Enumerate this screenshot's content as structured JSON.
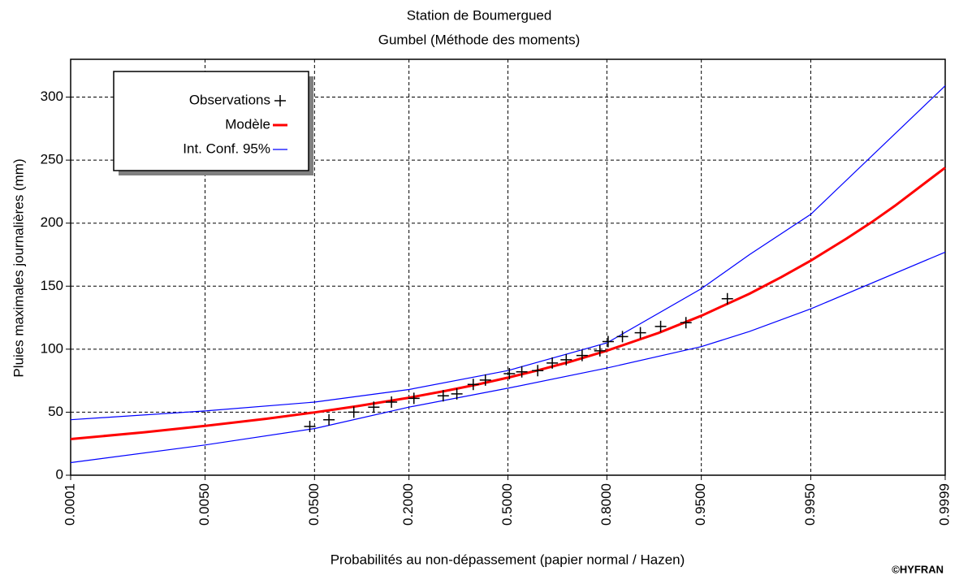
{
  "chart_data": {
    "type": "line",
    "title": "Station de Boumergued",
    "subtitle": "Gumbel (Méthode des moments)",
    "xlabel": "Probabilités au non-dépassement (papier normal / Hazen)",
    "ylabel": "Pluies maximales journalières (mm)",
    "credit": "©HYFRAN",
    "xscale": "normal-probability",
    "xlim": [
      0.0001,
      0.9999
    ],
    "xticks": [
      {
        "value": 0.0001,
        "label": "0.0001"
      },
      {
        "value": 0.005,
        "label": "0.0050"
      },
      {
        "value": 0.05,
        "label": "0.0500"
      },
      {
        "value": 0.2,
        "label": "0.2000"
      },
      {
        "value": 0.5,
        "label": "0.5000"
      },
      {
        "value": 0.8,
        "label": "0.8000"
      },
      {
        "value": 0.95,
        "label": "0.9500"
      },
      {
        "value": 0.995,
        "label": "0.9950"
      },
      {
        "value": 0.9999,
        "label": "0.9999"
      }
    ],
    "ylim": [
      0,
      330
    ],
    "yticks": [
      0,
      50,
      100,
      150,
      200,
      250,
      300
    ],
    "grid": true,
    "legend": "upper left",
    "series": [
      {
        "name": "Observations",
        "color": "#000000",
        "style": "markers",
        "x": [
          0.046,
          0.064,
          0.095,
          0.127,
          0.161,
          0.212,
          0.291,
          0.332,
          0.384,
          0.424,
          0.505,
          0.547,
          0.6,
          0.647,
          0.69,
          0.736,
          0.783,
          0.803,
          0.835,
          0.87,
          0.903,
          0.935,
          0.969
        ],
        "values": [
          38.7,
          44,
          50,
          54,
          58,
          61,
          63,
          64.5,
          72,
          75.5,
          80.6,
          82,
          83,
          89,
          91.6,
          95,
          98.7,
          106,
          110,
          113,
          118,
          121,
          140
        ]
      },
      {
        "name": "Modèle",
        "color": "#ff0000",
        "style": "line",
        "x": [
          0.0001,
          0.001,
          0.005,
          0.02,
          0.05,
          0.1,
          0.2,
          0.3,
          0.4,
          0.5,
          0.6,
          0.7,
          0.8,
          0.9,
          0.95,
          0.98,
          0.99,
          0.995,
          0.998,
          0.999,
          0.9995,
          0.9999
        ],
        "values": [
          28.7,
          34.1,
          39.1,
          44.8,
          49.8,
          54.8,
          61.5,
          67.0,
          72.1,
          77.4,
          83.2,
          89.9,
          98.8,
          112.9,
          126.5,
          144.0,
          157.2,
          170.3,
          187.6,
          200.6,
          213.7,
          244.0
        ]
      },
      {
        "name": "Int. Conf. 95%",
        "color": "#0000ff",
        "style": "band",
        "x": [
          0.0001,
          0.005,
          0.05,
          0.2,
          0.5,
          0.8,
          0.95,
          0.98,
          0.995,
          0.9999
        ],
        "upper": [
          44,
          51,
          58,
          68,
          83,
          105,
          148,
          175,
          207,
          309
        ],
        "lower": [
          10,
          24,
          37,
          54,
          69,
          85,
          102,
          114,
          132,
          177
        ]
      }
    ]
  }
}
